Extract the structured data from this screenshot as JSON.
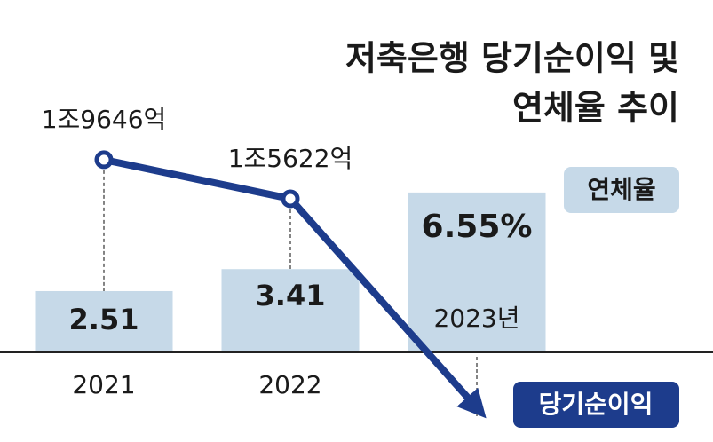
{
  "chart_data": {
    "type": "bar",
    "title": [
      "저축은행 당기순이익 및",
      "연체율 추이"
    ],
    "categories": [
      "2021",
      "2022",
      "2023년"
    ],
    "series": [
      {
        "name": "연체율",
        "type": "bar",
        "color": "#c6d9e8",
        "values": [
          2.51,
          3.41,
          6.55
        ],
        "value_labels": [
          "2.51",
          "3.41",
          "6.55%"
        ]
      },
      {
        "name": "당기순이익",
        "type": "line",
        "axis": "y2",
        "color": "#1d3c8c",
        "values": [
          19646,
          15622,
          -7000
        ],
        "value_labels": [
          "1조9646억",
          "1조5622억",
          null
        ]
      }
    ],
    "ylim": [
      0,
      14
    ],
    "y2lim": [
      -200,
      35000
    ]
  }
}
